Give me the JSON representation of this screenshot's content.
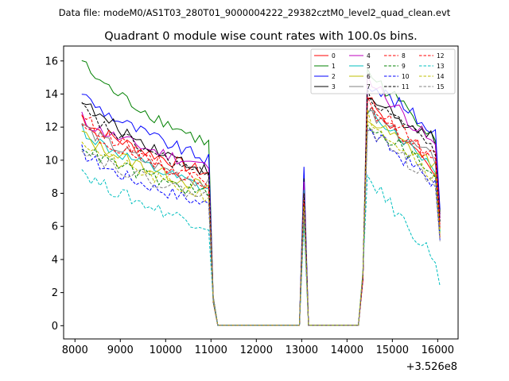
{
  "chart_data": {
    "type": "line",
    "suptitle": "Data file: modeM0/AS1T03_280T01_9000004222_29382cztM0_level2_quad_clean.evt",
    "title": "Quadrant 0 module wise count rates with 100.0s bins.",
    "xlabel": "",
    "ylabel": "",
    "x_offset_label": "+3.526e8",
    "xlim": [
      7750,
      16450
    ],
    "ylim": [
      -0.8,
      16.9
    ],
    "xticks": [
      8000,
      9000,
      10000,
      11000,
      12000,
      13000,
      14000,
      15000,
      16000
    ],
    "yticks": [
      0,
      2,
      4,
      6,
      8,
      10,
      12,
      14,
      16
    ],
    "legend_position": "top-right",
    "segments": [
      {
        "x_start": 8150,
        "x_end": 10950
      },
      {
        "x_start": 11050,
        "x_end": 11050
      },
      {
        "x_start": 11150,
        "x_end": 12950
      },
      {
        "x_start": 13050,
        "x_end": 13050
      },
      {
        "x_start": 13150,
        "x_end": 14250
      },
      {
        "x_start": 14350,
        "x_end": 14350
      },
      {
        "x_start": 14450,
        "x_end": 16050
      }
    ],
    "series": [
      {
        "name": "0",
        "color": "#ff0000",
        "dash": "solid",
        "a": 12.7,
        "b": 9.2,
        "spike": 7.8,
        "c": 13.8,
        "d": 8.9
      },
      {
        "name": "1",
        "color": "#008000",
        "dash": "solid",
        "a": 16.1,
        "b": 11.0,
        "spike": 8.6,
        "c": 15.3,
        "d": 11.5
      },
      {
        "name": "2",
        "color": "#0000ff",
        "dash": "solid",
        "a": 14.2,
        "b": 10.0,
        "spike": 9.6,
        "c": 14.8,
        "d": 11.7
      },
      {
        "name": "3",
        "color": "#000000",
        "dash": "solid",
        "a": 13.8,
        "b": 9.3,
        "spike": 8.9,
        "c": 13.8,
        "d": 11.2
      },
      {
        "name": "4",
        "color": "#bf00bf",
        "dash": "solid",
        "a": 12.6,
        "b": 9.6,
        "spike": 8.7,
        "c": 15.0,
        "d": 10.8
      },
      {
        "name": "5",
        "color": "#00bfbf",
        "dash": "solid",
        "a": 12.0,
        "b": 8.2,
        "spike": 8.2,
        "c": 13.2,
        "d": 9.5
      },
      {
        "name": "6",
        "color": "#bfbf00",
        "dash": "solid",
        "a": 11.7,
        "b": 8.3,
        "spike": 8.0,
        "c": 12.5,
        "d": 9.7
      },
      {
        "name": "7",
        "color": "#808080",
        "dash": "solid",
        "a": 12.3,
        "b": 8.5,
        "spike": 7.5,
        "c": 12.8,
        "d": 10.0
      },
      {
        "name": "8",
        "color": "#ff0000",
        "dash": "dashed",
        "a": 12.9,
        "b": 8.6,
        "spike": 7.3,
        "c": 13.4,
        "d": 10.3
      },
      {
        "name": "9",
        "color": "#008000",
        "dash": "dashed",
        "a": 11.0,
        "b": 7.9,
        "spike": 7.0,
        "c": 12.3,
        "d": 9.2
      },
      {
        "name": "10",
        "color": "#0000ff",
        "dash": "dashed",
        "a": 10.6,
        "b": 7.3,
        "spike": 6.8,
        "c": 11.8,
        "d": 8.6
      },
      {
        "name": "11",
        "color": "#000000",
        "dash": "dashed",
        "a": 13.3,
        "b": 9.0,
        "spike": 8.0,
        "c": 13.9,
        "d": 10.5
      },
      {
        "name": "12",
        "color": "#ff0000",
        "dash": "dashed",
        "a": 12.1,
        "b": 8.7,
        "spike": 7.6,
        "c": 13.1,
        "d": 9.9
      },
      {
        "name": "13",
        "color": "#00bfbf",
        "dash": "dashed",
        "a": 9.5,
        "b": 6.0,
        "spike": 6.2,
        "c": 9.0,
        "d": 4.0
      },
      {
        "name": "14",
        "color": "#bfbf00",
        "dash": "dashed",
        "a": 11.3,
        "b": 7.8,
        "spike": 7.2,
        "c": 12.7,
        "d": 9.0
      },
      {
        "name": "15",
        "color": "#808080",
        "dash": "dashed",
        "a": 10.9,
        "b": 7.7,
        "spike": 6.9,
        "c": 12.0,
        "d": 8.5
      }
    ]
  }
}
